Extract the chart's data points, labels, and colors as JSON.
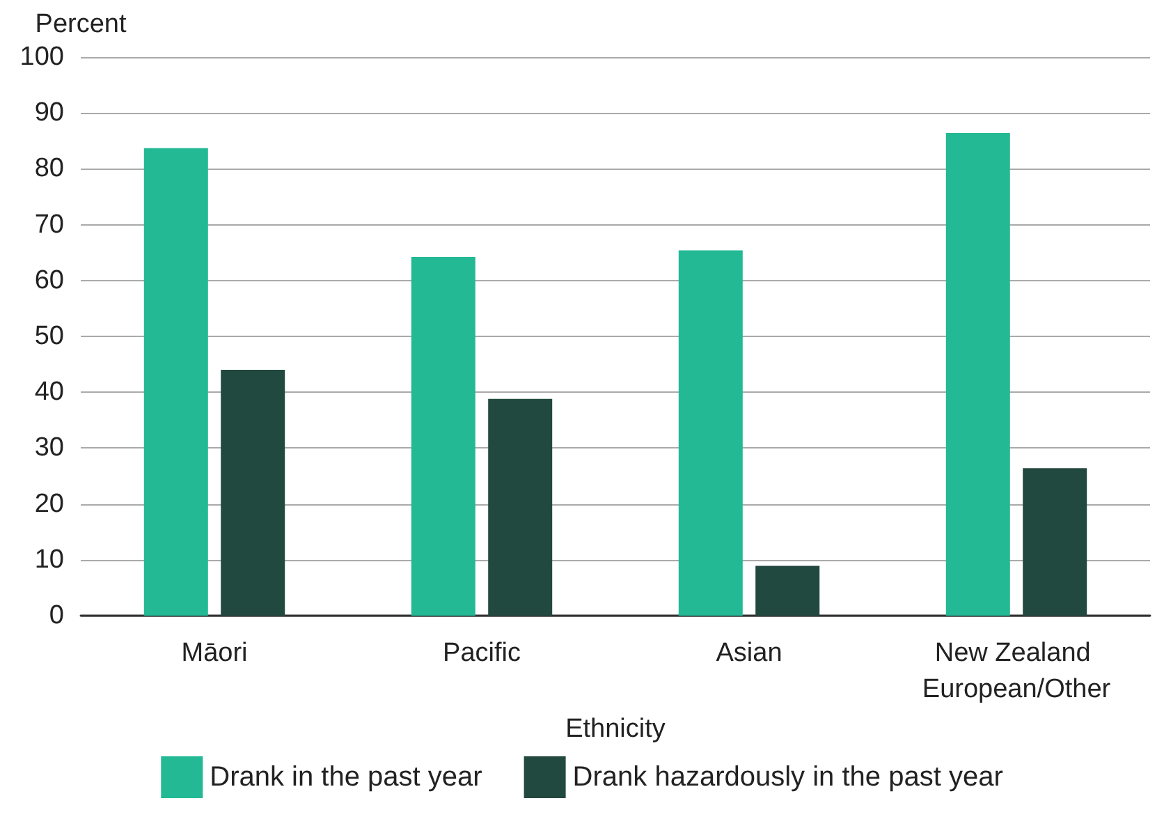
{
  "chart_data": {
    "type": "bar",
    "xlabel": "Ethnicity",
    "ylabel": "Percent",
    "categories": [
      "Māori",
      "Pacific",
      "Asian",
      "New Zealand European/Other"
    ],
    "series": [
      {
        "name": "Drank in the past year",
        "color": "#22b994",
        "values": [
          83.7,
          64.2,
          65.4,
          86.4
        ]
      },
      {
        "name": "Drank hazardously in the past year",
        "color": "#22493f",
        "values": [
          44.0,
          38.8,
          8.9,
          26.4
        ]
      }
    ],
    "ylim": [
      0,
      100
    ],
    "yticks": [
      0,
      10,
      20,
      30,
      40,
      50,
      60,
      70,
      80,
      90,
      100
    ],
    "grid": "y",
    "legend": "bottom"
  }
}
